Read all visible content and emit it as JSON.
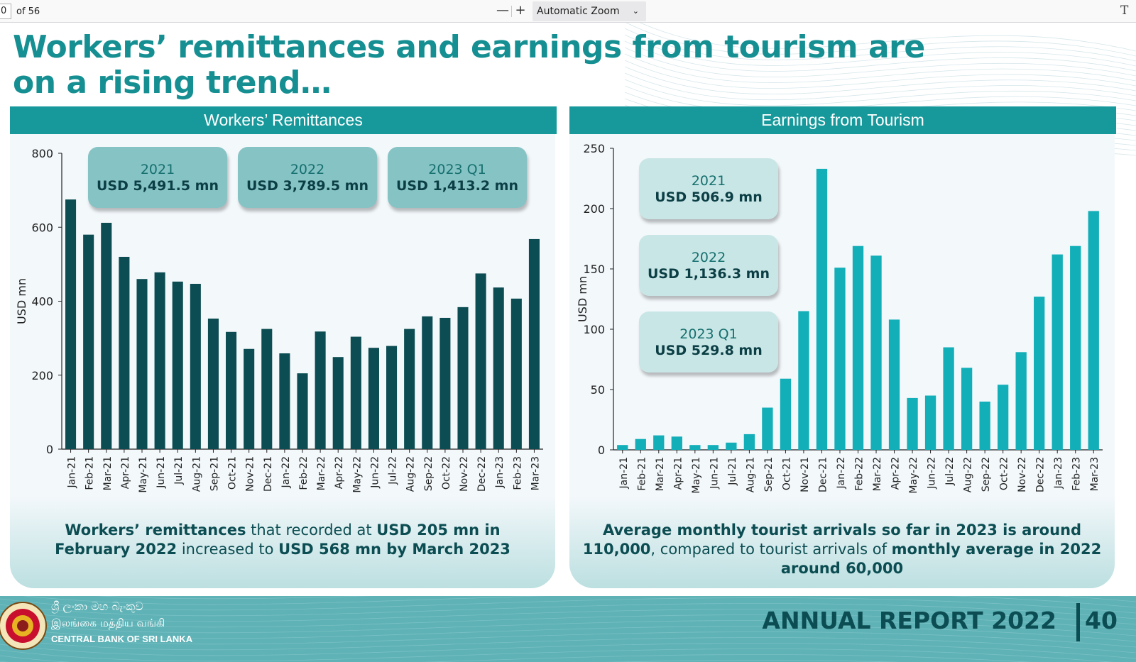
{
  "toolbar": {
    "page_input": "0",
    "page_total": "of 56",
    "zoom_out": "—",
    "zoom_in": "+",
    "zoom_value": "Automatic Zoom",
    "chevron": "⌄",
    "text_tool": "T"
  },
  "title": "Workers’ remittances and earnings from tourism are on a rising trend…",
  "colors": {
    "teal_header": "#17999b",
    "remit_bar": "#0b4d52",
    "tour_bar": "#12afb8",
    "box_remit": "#86c3c5",
    "box_tour": "#c9e6e6"
  },
  "panels": {
    "remit": {
      "header": "Workers’ Remittances",
      "boxes": [
        {
          "year": "2021",
          "amount": "USD 5,491.5 mn"
        },
        {
          "year": "2022",
          "amount": "USD 3,789.5 mn"
        },
        {
          "year": "2023 Q1",
          "amount": "USD 1,413.2 mn"
        }
      ],
      "note": {
        "p1": "Workers’ remittances",
        "p2": " that recorded at ",
        "p3": "USD 205 mn in February 2022",
        "p4": " increased to ",
        "p5": "USD 568 mn by March 2023"
      }
    },
    "tour": {
      "header": "Earnings from Tourism",
      "boxes": [
        {
          "year": "2021",
          "amount": "USD 506.9 mn"
        },
        {
          "year": "2022",
          "amount": "USD 1,136.3 mn"
        },
        {
          "year": "2023 Q1",
          "amount": "USD 529.8 mn"
        }
      ],
      "note": {
        "p1": "Average monthly tourist arrivals so far in 2023 is around 110,000",
        "p2": ", compared to tourist arrivals of ",
        "p3": "monthly average in 2022 around 60,000"
      }
    }
  },
  "footer": {
    "bank_si": "ශ්‍රී ලංකා මහ බැංකුව",
    "bank_ta": "இலங்கை மத்திய வங்கி",
    "bank_en": "CENTRAL BANK OF SRI LANKA",
    "report": "ANNUAL REPORT 2022",
    "page": "40"
  },
  "chart_data": [
    {
      "type": "bar",
      "title": "Workers’ Remittances",
      "ylabel": "USD mn",
      "ylim": [
        0,
        800
      ],
      "yticks": [
        0,
        200,
        400,
        600,
        800
      ],
      "grid": false,
      "categories": [
        "Jan-21",
        "Feb-21",
        "Mar-21",
        "Apr-21",
        "May-21",
        "Jun-21",
        "Jul-21",
        "Aug-21",
        "Sep-21",
        "Oct-21",
        "Nov-21",
        "Dec-21",
        "Jan-22",
        "Feb-22",
        "Mar-22",
        "Apr-22",
        "May-22",
        "Jun-22",
        "Jul-22",
        "Aug-22",
        "Sep-22",
        "Oct-22",
        "Nov-22",
        "Dec-22",
        "Jan-23",
        "Feb-23",
        "Mar-23"
      ],
      "values": [
        675,
        580,
        612,
        520,
        460,
        478,
        453,
        447,
        353,
        317,
        271,
        325,
        259,
        205,
        318,
        249,
        304,
        274,
        279,
        325,
        359,
        355,
        384,
        475,
        437,
        407,
        568
      ]
    },
    {
      "type": "bar",
      "title": "Earnings from Tourism",
      "ylabel": "USD mn",
      "ylim": [
        0,
        250
      ],
      "yticks": [
        0,
        50,
        100,
        150,
        200,
        250
      ],
      "grid": false,
      "categories": [
        "Jan-21",
        "Feb-21",
        "Mar-21",
        "Apr-21",
        "May-21",
        "Jun-21",
        "Jul-21",
        "Aug-21",
        "Sep-21",
        "Oct-21",
        "Nov-21",
        "Dec-21",
        "Jan-22",
        "Feb-22",
        "Mar-22",
        "Apr-22",
        "May-22",
        "Jun-22",
        "Jul-22",
        "Aug-22",
        "Sep-22",
        "Oct-22",
        "Nov-22",
        "Dec-22",
        "Jan-23",
        "Feb-23",
        "Mar-23"
      ],
      "values": [
        4,
        9,
        12,
        11,
        4,
        4,
        6,
        13,
        35,
        59,
        115,
        233,
        151,
        169,
        161,
        108,
        43,
        45,
        85,
        68,
        40,
        54,
        81,
        127,
        162,
        169,
        198
      ]
    }
  ]
}
